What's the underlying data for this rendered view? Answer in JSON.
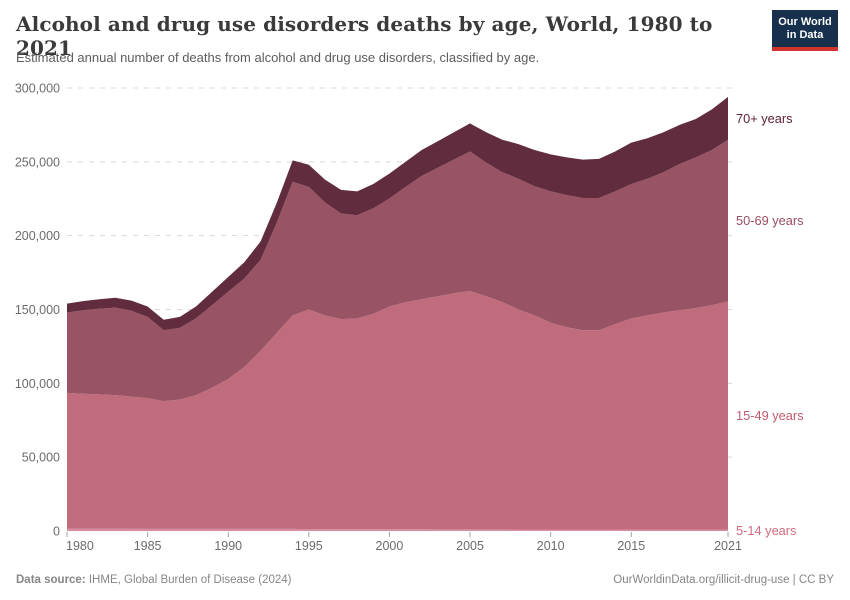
{
  "header": {
    "title": "Alcohol and drug use disorders deaths by age, World, 1980 to 2021",
    "subtitle": "Estimated annual number of deaths from alcohol and drug use disorders, classified by age.",
    "logo": {
      "line1": "Our World",
      "line2": "in Data",
      "bg_color": "#16304e",
      "accent_color": "#d0342c"
    }
  },
  "footer": {
    "source_label": "Data source:",
    "source_text": " IHME, Global Burden of Disease (2024)",
    "right_text": "OurWorldinData.org/illicit-drug-use | CC BY"
  },
  "chart_data": {
    "type": "area",
    "stacked": true,
    "title": "Alcohol and drug use disorders deaths by age, World, 1980 to 2021",
    "xlabel": "",
    "ylabel": "",
    "ylim": [
      0,
      300000
    ],
    "grid": "horizontal-dashed",
    "legend_position": "right-edge-labels",
    "x": [
      1980,
      1981,
      1982,
      1983,
      1984,
      1985,
      1986,
      1987,
      1988,
      1989,
      1990,
      1991,
      1992,
      1993,
      1994,
      1995,
      1996,
      1997,
      1998,
      1999,
      2000,
      2001,
      2002,
      2003,
      2004,
      2005,
      2006,
      2007,
      2008,
      2009,
      2010,
      2011,
      2012,
      2013,
      2014,
      2015,
      2016,
      2017,
      2018,
      2019,
      2020,
      2021
    ],
    "xticks": [
      1980,
      1985,
      1990,
      1995,
      2000,
      2005,
      2010,
      2015,
      2021
    ],
    "yticks": [
      0,
      50000,
      100000,
      150000,
      200000,
      250000,
      300000
    ],
    "series": [
      {
        "name": "5-14 years",
        "color": "#d78d9d",
        "label_color": "#d26b7f",
        "values": [
          1500,
          1500,
          1500,
          1500,
          1500,
          1400,
          1400,
          1400,
          1400,
          1400,
          1400,
          1400,
          1400,
          1400,
          1400,
          1300,
          1300,
          1300,
          1300,
          1200,
          1200,
          1200,
          1200,
          1100,
          1100,
          1100,
          1100,
          1100,
          1000,
          1000,
          1000,
          1000,
          1000,
          1000,
          1000,
          900,
          900,
          900,
          900,
          900,
          900,
          900
        ]
      },
      {
        "name": "15-49 years",
        "color": "#c06c7c",
        "label_color": "#c25a71",
        "values": [
          92000,
          91500,
          91000,
          90500,
          89500,
          88600,
          86600,
          87600,
          90600,
          95600,
          101600,
          109600,
          120600,
          132600,
          144600,
          148700,
          144700,
          142200,
          142700,
          145800,
          150800,
          153800,
          155800,
          157900,
          159900,
          161400,
          157900,
          153900,
          149000,
          145000,
          140000,
          137000,
          135000,
          135000,
          139000,
          143100,
          145100,
          147100,
          148600,
          150100,
          152100,
          154600
        ]
      },
      {
        "name": "50-69 years",
        "color": "#985364",
        "label_color": "#9a4e62",
        "values": [
          54500,
          56500,
          58000,
          59300,
          58200,
          55000,
          48000,
          48600,
          52000,
          56000,
          59000,
          60000,
          61500,
          74500,
          90500,
          83000,
          76500,
          71500,
          69800,
          71500,
          73200,
          78000,
          83500,
          87000,
          90500,
          94500,
          90500,
          88000,
          88500,
          87500,
          89000,
          89500,
          89500,
          89500,
          90000,
          91000,
          92500,
          95000,
          99000,
          102000,
          105000,
          109500
        ]
      },
      {
        "name": "70+ years",
        "color": "#602c3e",
        "label_color": "#5f2139",
        "values": [
          6000,
          6200,
          6400,
          6600,
          6800,
          7000,
          7000,
          7400,
          8000,
          9000,
          10000,
          11000,
          12500,
          13500,
          14500,
          15000,
          15500,
          16000,
          16200,
          16500,
          16800,
          17000,
          17500,
          18000,
          18500,
          19000,
          20500,
          22000,
          23500,
          24500,
          25000,
          25500,
          26000,
          26500,
          27000,
          28000,
          27500,
          27000,
          26500,
          26000,
          27500,
          29000
        ]
      }
    ]
  }
}
